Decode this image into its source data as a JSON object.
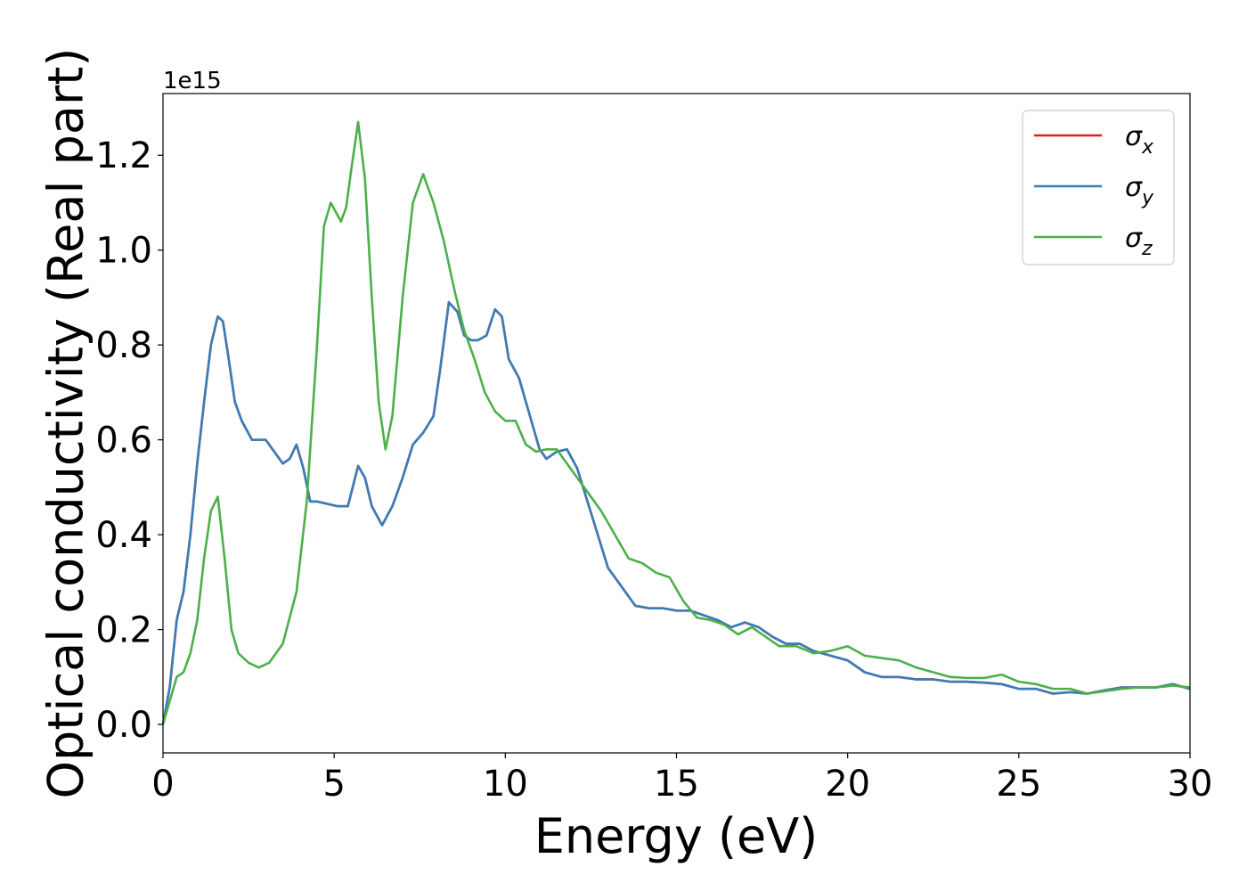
{
  "chart_data": {
    "type": "line",
    "title": "",
    "xlabel": "Energy (eV)",
    "ylabel": "Optical conductivity (Real part)",
    "y_offset_label": "1e15",
    "xlim": [
      0,
      30
    ],
    "ylim": [
      -0.06,
      1.33
    ],
    "x_ticks": [
      0,
      5,
      10,
      15,
      20,
      25,
      30
    ],
    "x_tick_labels": [
      "0",
      "5",
      "10",
      "15",
      "20",
      "25",
      "30"
    ],
    "y_ticks": [
      0.0,
      0.2,
      0.4,
      0.6,
      0.8,
      1.0,
      1.2
    ],
    "y_tick_labels": [
      "0.0",
      "0.2",
      "0.4",
      "0.6",
      "0.8",
      "1.0",
      "1.2"
    ],
    "grid": false,
    "legend_position": "top-right",
    "legend": [
      {
        "symbol": "σ",
        "subscript": "x",
        "color": "#e41a1c"
      },
      {
        "symbol": "σ",
        "subscript": "y",
        "color": "#377eb8"
      },
      {
        "symbol": "σ",
        "subscript": "z",
        "color": "#4daf4a"
      }
    ],
    "series": [
      {
        "key": "sigma_x",
        "color": "#e41a1c",
        "x": [
          0,
          0.2,
          0.4,
          0.6,
          0.8,
          1.0,
          1.2,
          1.4,
          1.6,
          1.75,
          1.9,
          2.1,
          2.3,
          2.6,
          2.8,
          3.0,
          3.2,
          3.5,
          3.7,
          3.9,
          4.1,
          4.3,
          4.5,
          4.8,
          5.1,
          5.4,
          5.7,
          5.9,
          6.1,
          6.4,
          6.7,
          7.0,
          7.3,
          7.6,
          7.9,
          8.1,
          8.35,
          8.6,
          8.8,
          9.0,
          9.2,
          9.45,
          9.7,
          9.9,
          10.1,
          10.4,
          10.6,
          10.8,
          11.0,
          11.2,
          11.5,
          11.8,
          12.1,
          12.4,
          12.7,
          13.0,
          13.4,
          13.8,
          14.2,
          14.6,
          15.0,
          15.4,
          15.8,
          16.2,
          16.6,
          17.0,
          17.4,
          17.8,
          18.2,
          18.6,
          19.0,
          19.5,
          20.0,
          20.5,
          21.0,
          21.5,
          22.0,
          22.5,
          23.0,
          23.5,
          24.0,
          24.5,
          25.0,
          25.5,
          26.0,
          26.5,
          27.0,
          27.5,
          28.0,
          28.5,
          29.0,
          29.5,
          30.0
        ],
        "y": [
          0.0,
          0.08,
          0.22,
          0.28,
          0.4,
          0.55,
          0.68,
          0.8,
          0.86,
          0.85,
          0.78,
          0.68,
          0.64,
          0.6,
          0.6,
          0.6,
          0.58,
          0.55,
          0.56,
          0.59,
          0.54,
          0.47,
          0.47,
          0.465,
          0.46,
          0.46,
          0.545,
          0.52,
          0.46,
          0.42,
          0.46,
          0.52,
          0.59,
          0.615,
          0.65,
          0.75,
          0.89,
          0.87,
          0.82,
          0.81,
          0.81,
          0.82,
          0.875,
          0.86,
          0.77,
          0.73,
          0.68,
          0.63,
          0.58,
          0.56,
          0.575,
          0.58,
          0.54,
          0.47,
          0.4,
          0.33,
          0.29,
          0.25,
          0.245,
          0.245,
          0.24,
          0.24,
          0.23,
          0.22,
          0.205,
          0.215,
          0.205,
          0.185,
          0.17,
          0.17,
          0.155,
          0.145,
          0.135,
          0.11,
          0.1,
          0.1,
          0.095,
          0.095,
          0.09,
          0.09,
          0.088,
          0.085,
          0.075,
          0.075,
          0.065,
          0.068,
          0.065,
          0.072,
          0.078,
          0.078,
          0.078,
          0.085,
          0.075
        ]
      },
      {
        "key": "sigma_y",
        "color": "#377eb8",
        "x": [
          0,
          0.2,
          0.4,
          0.6,
          0.8,
          1.0,
          1.2,
          1.4,
          1.6,
          1.75,
          1.9,
          2.1,
          2.3,
          2.6,
          2.8,
          3.0,
          3.2,
          3.5,
          3.7,
          3.9,
          4.1,
          4.3,
          4.5,
          4.8,
          5.1,
          5.4,
          5.7,
          5.9,
          6.1,
          6.4,
          6.7,
          7.0,
          7.3,
          7.6,
          7.9,
          8.1,
          8.35,
          8.6,
          8.8,
          9.0,
          9.2,
          9.45,
          9.7,
          9.9,
          10.1,
          10.4,
          10.6,
          10.8,
          11.0,
          11.2,
          11.5,
          11.8,
          12.1,
          12.4,
          12.7,
          13.0,
          13.4,
          13.8,
          14.2,
          14.6,
          15.0,
          15.4,
          15.8,
          16.2,
          16.6,
          17.0,
          17.4,
          17.8,
          18.2,
          18.6,
          19.0,
          19.5,
          20.0,
          20.5,
          21.0,
          21.5,
          22.0,
          22.5,
          23.0,
          23.5,
          24.0,
          24.5,
          25.0,
          25.5,
          26.0,
          26.5,
          27.0,
          27.5,
          28.0,
          28.5,
          29.0,
          29.5,
          30.0
        ],
        "y": [
          0.0,
          0.08,
          0.22,
          0.28,
          0.4,
          0.55,
          0.68,
          0.8,
          0.86,
          0.85,
          0.78,
          0.68,
          0.64,
          0.6,
          0.6,
          0.6,
          0.58,
          0.55,
          0.56,
          0.59,
          0.54,
          0.47,
          0.47,
          0.465,
          0.46,
          0.46,
          0.545,
          0.52,
          0.46,
          0.42,
          0.46,
          0.52,
          0.59,
          0.615,
          0.65,
          0.75,
          0.89,
          0.87,
          0.82,
          0.81,
          0.81,
          0.82,
          0.875,
          0.86,
          0.77,
          0.73,
          0.68,
          0.63,
          0.58,
          0.56,
          0.575,
          0.58,
          0.54,
          0.47,
          0.4,
          0.33,
          0.29,
          0.25,
          0.245,
          0.245,
          0.24,
          0.24,
          0.23,
          0.22,
          0.205,
          0.215,
          0.205,
          0.185,
          0.17,
          0.17,
          0.155,
          0.145,
          0.135,
          0.11,
          0.1,
          0.1,
          0.095,
          0.095,
          0.09,
          0.09,
          0.088,
          0.085,
          0.075,
          0.075,
          0.065,
          0.068,
          0.065,
          0.072,
          0.078,
          0.078,
          0.078,
          0.085,
          0.075
        ]
      },
      {
        "key": "sigma_z",
        "color": "#4daf4a",
        "x": [
          0,
          0.2,
          0.4,
          0.6,
          0.8,
          1.0,
          1.2,
          1.4,
          1.6,
          1.8,
          2.0,
          2.2,
          2.5,
          2.8,
          3.1,
          3.5,
          3.9,
          4.2,
          4.5,
          4.7,
          4.9,
          5.05,
          5.2,
          5.35,
          5.5,
          5.7,
          5.9,
          6.1,
          6.3,
          6.5,
          6.7,
          7.0,
          7.3,
          7.6,
          7.9,
          8.2,
          8.5,
          8.8,
          9.1,
          9.4,
          9.7,
          10.0,
          10.3,
          10.6,
          10.9,
          11.2,
          11.5,
          11.8,
          12.1,
          12.4,
          12.8,
          13.2,
          13.6,
          14.0,
          14.4,
          14.8,
          15.2,
          15.6,
          16.0,
          16.4,
          16.8,
          17.2,
          17.6,
          18.0,
          18.5,
          19.0,
          19.5,
          20.0,
          20.5,
          21.0,
          21.5,
          22.0,
          22.5,
          23.0,
          23.5,
          24.0,
          24.5,
          25.0,
          25.5,
          26.0,
          26.5,
          27.0,
          27.5,
          28.0,
          28.5,
          29.0,
          29.5,
          30.0
        ],
        "y": [
          0.0,
          0.05,
          0.1,
          0.11,
          0.15,
          0.22,
          0.35,
          0.45,
          0.48,
          0.35,
          0.2,
          0.15,
          0.13,
          0.12,
          0.13,
          0.17,
          0.28,
          0.47,
          0.8,
          1.05,
          1.1,
          1.08,
          1.06,
          1.09,
          1.17,
          1.27,
          1.15,
          0.9,
          0.68,
          0.58,
          0.65,
          0.9,
          1.1,
          1.16,
          1.1,
          1.02,
          0.92,
          0.83,
          0.77,
          0.7,
          0.66,
          0.64,
          0.64,
          0.59,
          0.575,
          0.58,
          0.58,
          0.55,
          0.52,
          0.49,
          0.45,
          0.4,
          0.35,
          0.34,
          0.32,
          0.31,
          0.26,
          0.225,
          0.22,
          0.21,
          0.19,
          0.205,
          0.185,
          0.165,
          0.165,
          0.15,
          0.155,
          0.165,
          0.145,
          0.14,
          0.135,
          0.12,
          0.11,
          0.1,
          0.098,
          0.098,
          0.105,
          0.09,
          0.085,
          0.075,
          0.075,
          0.065,
          0.07,
          0.075,
          0.078,
          0.078,
          0.082,
          0.078
        ]
      }
    ]
  }
}
